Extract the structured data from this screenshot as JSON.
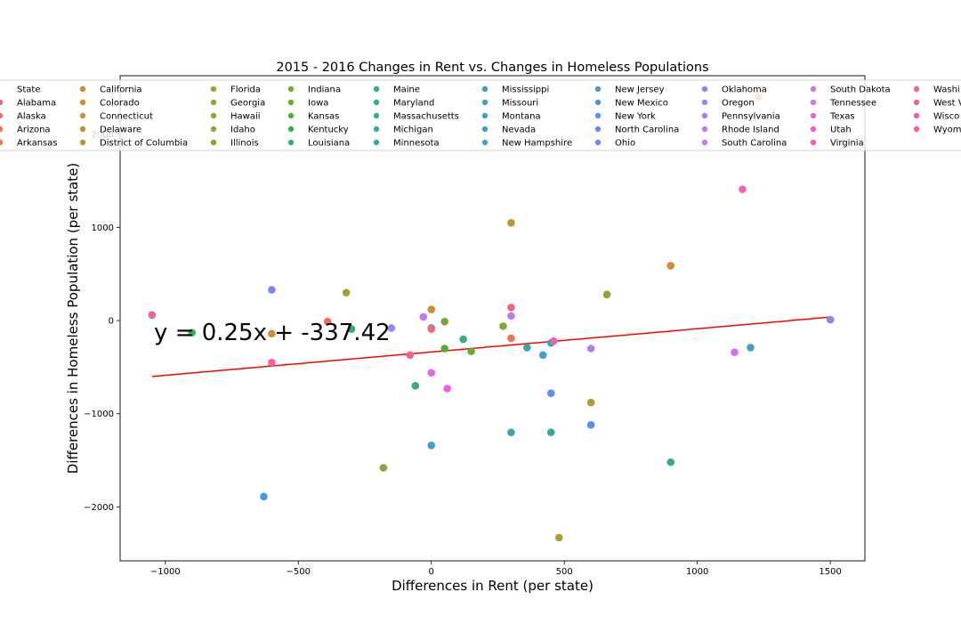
{
  "chart_data": {
    "type": "scatter",
    "title": "2015 - 2016 Changes in Rent vs. Changes in Homeless Populations",
    "xlabel": "Differences in Rent (per state)",
    "ylabel": "Differences in Homeless Population (per state)",
    "xlim": [
      -1170,
      1630
    ],
    "ylim": [
      -2580,
      2630
    ],
    "x_ticks": [
      -1000,
      -500,
      0,
      500,
      1000,
      1500
    ],
    "y_ticks": [
      -2000,
      -1000,
      0,
      1000,
      2000
    ],
    "x_tick_labels": [
      "−1000",
      "−500",
      "0",
      "500",
      "1000",
      "1500"
    ],
    "y_tick_labels": [
      "−2000",
      "−1000",
      "0",
      "1000",
      "2000"
    ],
    "grid": false,
    "legend": {
      "placement": "top",
      "columns": 10,
      "entries": [
        "State",
        "Alabama",
        "Alaska",
        "Arizona",
        "Arkansas",
        "California",
        "Colorado",
        "Connecticut",
        "Delaware",
        "District of Columbia",
        "Florida",
        "Georgia",
        "Hawaii",
        "Idaho",
        "Illinois",
        "Indiana",
        "Iowa",
        "Kansas",
        "Kentucky",
        "Louisiana",
        "Maine",
        "Maryland",
        "Massachusetts",
        "Michigan",
        "Minnesota",
        "Mississippi",
        "Missouri",
        "Montana",
        "Nevada",
        "New Hampshire",
        "New Jersey",
        "New Mexico",
        "New York",
        "North Carolina",
        "Ohio",
        "Oklahoma",
        "Oregon",
        "Pennsylvania",
        "Rhode Island",
        "South Carolina",
        "South Dakota",
        "Tennessee",
        "Texas",
        "Utah",
        "Virginia",
        "Washi",
        "West V",
        "Wisco",
        "Wyom"
      ]
    },
    "series": [
      {
        "name": "Alabama",
        "color": "#f2657e",
        "x": [
          300
        ],
        "y": [
          140
        ]
      },
      {
        "name": "Alaska",
        "color": "#f26b5f",
        "x": [
          -390
        ],
        "y": [
          -10
        ]
      },
      {
        "name": "Arizona",
        "color": "#f2705a",
        "x": [
          300
        ],
        "y": [
          -190
        ]
      },
      {
        "name": "Arkansas",
        "color": "#f07838",
        "x": [
          1230
        ],
        "y": [
          2400
        ]
      },
      {
        "name": "California",
        "color": "#dd8433",
        "x": [
          900
        ],
        "y": [
          590
        ]
      },
      {
        "name": "Colorado",
        "color": "#d38a33",
        "x": [
          -600
        ],
        "y": [
          -140
        ]
      },
      {
        "name": "Connecticut",
        "color": "#c99033",
        "x": [
          0
        ],
        "y": [
          120
        ]
      },
      {
        "name": "Delaware",
        "color": "#bf9433",
        "x": [
          300
        ],
        "y": [
          1050
        ]
      },
      {
        "name": "District of Columbia",
        "color": "#b69833",
        "x": [
          480
        ],
        "y": [
          -2330
        ]
      },
      {
        "name": "Florida",
        "color": "#ad9b33",
        "x": [
          600
        ],
        "y": [
          -880
        ]
      },
      {
        "name": "Georgia",
        "color": "#a59e33",
        "x": [
          -320
        ],
        "y": [
          300
        ]
      },
      {
        "name": "Hawaii",
        "color": "#9ca033",
        "x": [
          660
        ],
        "y": [
          280
        ]
      },
      {
        "name": "Idaho",
        "color": "#93a233",
        "x": [
          -180
        ],
        "y": [
          -1580
        ]
      },
      {
        "name": "Illinois",
        "color": "#88a533",
        "x": [
          270
        ],
        "y": [
          -60
        ]
      },
      {
        "name": "Indiana",
        "color": "#7ba833",
        "x": [
          50
        ],
        "y": [
          -10
        ]
      },
      {
        "name": "Iowa",
        "color": "#6aac32",
        "x": [
          150
        ],
        "y": [
          -330
        ]
      },
      {
        "name": "Kansas",
        "color": "#4fb032",
        "x": [
          50
        ],
        "y": [
          -300
        ]
      },
      {
        "name": "Kentucky",
        "color": "#34b050",
        "x": [
          -900
        ],
        "y": [
          -130
        ]
      },
      {
        "name": "Louisiana",
        "color": "#34ae6d",
        "x": [
          -300
        ],
        "y": [
          -90
        ]
      },
      {
        "name": "Maine",
        "color": "#35ad7e",
        "x": [
          -60
        ],
        "y": [
          -700
        ]
      },
      {
        "name": "Maryland",
        "color": "#36ab8a",
        "x": [
          120
        ],
        "y": [
          -200
        ]
      },
      {
        "name": "Massachusetts",
        "color": "#36aa93",
        "x": [
          900
        ],
        "y": [
          -1520
        ]
      },
      {
        "name": "Michigan",
        "color": "#37a99b",
        "x": [
          450
        ],
        "y": [
          -1200
        ]
      },
      {
        "name": "Minnesota",
        "color": "#38a8a3",
        "x": [
          360
        ],
        "y": [
          -290
        ]
      },
      {
        "name": "Mississippi",
        "color": "#38a7aa",
        "x": [
          300
        ],
        "y": [
          -1200
        ]
      },
      {
        "name": "Missouri",
        "color": "#39a6b1",
        "x": [
          0
        ],
        "y": [
          -80
        ]
      },
      {
        "name": "Montana",
        "color": "#3aa5b9",
        "x": [
          450
        ],
        "y": [
          -240
        ]
      },
      {
        "name": "Nevada",
        "color": "#3ba3c3",
        "x": [
          1200
        ],
        "y": [
          -290
        ]
      },
      {
        "name": "New Hampshire",
        "color": "#3ca1cf",
        "x": [
          420
        ],
        "y": [
          -370
        ]
      },
      {
        "name": "New Jersey",
        "color": "#3e9fdc",
        "x": [
          0
        ],
        "y": [
          -1340
        ]
      },
      {
        "name": "New Mexico",
        "color": "#459ae8",
        "x": [
          -630
        ],
        "y": [
          -1890
        ]
      },
      {
        "name": "New York",
        "color": "#5393ed",
        "x": [
          600
        ],
        "y": [
          -1120
        ]
      },
      {
        "name": "North Carolina",
        "color": "#658cf0",
        "x": [
          450
        ],
        "y": [
          -780
        ]
      },
      {
        "name": "Ohio",
        "color": "#7888f2",
        "x": [
          -600
        ],
        "y": [
          330
        ]
      },
      {
        "name": "Oklahoma",
        "color": "#8a86f3",
        "x": [
          1500
        ],
        "y": [
          10
        ]
      },
      {
        "name": "Oregon",
        "color": "#9b84f3",
        "x": [
          -150
        ],
        "y": [
          -80
        ]
      },
      {
        "name": "Pennsylvania",
        "color": "#aa80f2",
        "x": [
          600
        ],
        "y": [
          -300
        ]
      },
      {
        "name": "Rhode Island",
        "color": "#b87cf2",
        "x": [
          300
        ],
        "y": [
          50
        ]
      },
      {
        "name": "South Carolina",
        "color": "#c777f1",
        "x": [
          -30
        ],
        "y": [
          40
        ]
      },
      {
        "name": "South Dakota",
        "color": "#d472ef",
        "x": [
          1140
        ],
        "y": [
          -340
        ]
      },
      {
        "name": "Tennessee",
        "color": "#e06aec",
        "x": [
          0
        ],
        "y": [
          -560
        ]
      },
      {
        "name": "Texas",
        "color": "#ea62de",
        "x": [
          60
        ],
        "y": [
          -730
        ]
      },
      {
        "name": "Utah",
        "color": "#ef5ec9",
        "x": [
          1170
        ],
        "y": [
          1410
        ]
      },
      {
        "name": "Virginia",
        "color": "#f05fb6",
        "x": [
          460
        ],
        "y": [
          -220
        ]
      },
      {
        "name": "Washi",
        "color": "#f060a5",
        "x": [
          -600
        ],
        "y": [
          -450
        ]
      },
      {
        "name": "West V",
        "color": "#f16196",
        "x": [
          -1050
        ],
        "y": [
          60
        ]
      },
      {
        "name": "Wisco",
        "color": "#f16289",
        "x": [
          -80
        ],
        "y": [
          -370
        ]
      },
      {
        "name": "Wyom",
        "color": "#f26480",
        "x": [
          0
        ],
        "y": [
          -90
        ]
      }
    ],
    "regression": {
      "label": "y = 0.25x + -337.42",
      "color": "#ff0000",
      "slope": 0.25,
      "intercept": -337.42,
      "x_range": [
        -1050,
        1500
      ]
    }
  }
}
